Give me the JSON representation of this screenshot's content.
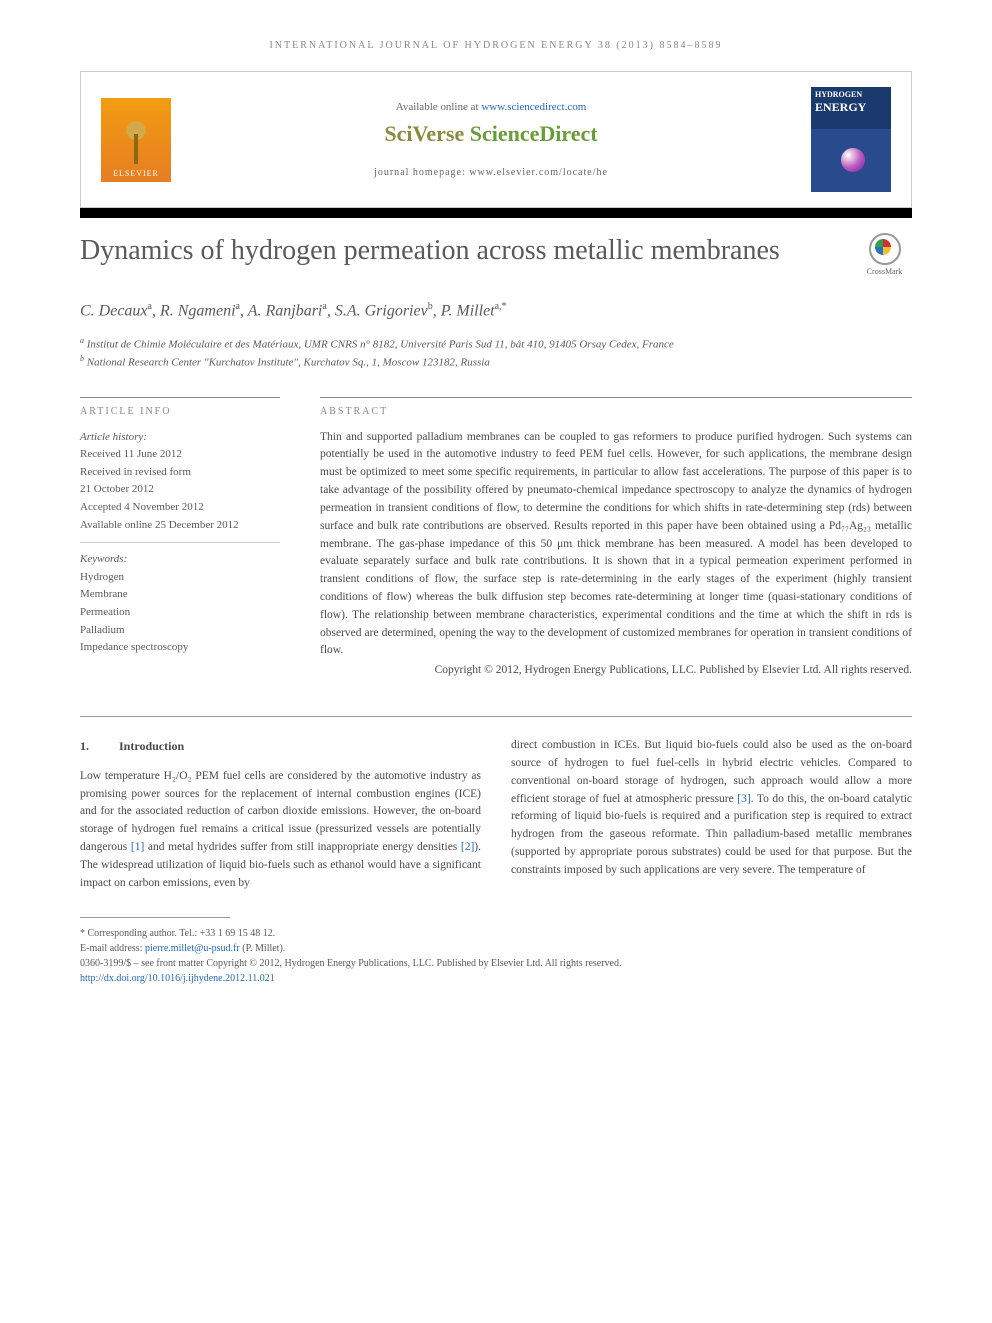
{
  "running_head": "INTERNATIONAL JOURNAL OF HYDROGEN ENERGY 38 (2013) 8584–8589",
  "header": {
    "elsevier_label": "ELSEVIER",
    "available_text": "Available online at ",
    "sd_url": "www.sciencedirect.com",
    "sciverse_prefix": "SciVerse",
    "sciverse_main": " ScienceDirect",
    "homepage_label": "journal homepage: ",
    "homepage_url": "www.elsevier.com/locate/he",
    "journal_cover_title1": "HYDROGEN",
    "journal_cover_title2": "ENERGY"
  },
  "article": {
    "title": "Dynamics of hydrogen permeation across metallic membranes",
    "crossmark_label": "CrossMark",
    "authors_html": "C. Decaux<sup>a</sup>, R. Ngameni<sup>a</sup>, A. Ranjbari<sup>a</sup>, S.A. Grigoriev<sup>b</sup>, P. Millet<sup>a,*</sup>",
    "affiliations": [
      "a Institut de Chimie Moléculaire et des Matériaux, UMR CNRS n° 8182, Université Paris Sud 11, bât 410, 91405 Orsay Cedex, France",
      "b National Research Center \"Kurchatov Institute\", Kurchatov Sq., 1, Moscow 123182, Russia"
    ]
  },
  "info": {
    "label": "ARTICLE INFO",
    "history_label": "Article history:",
    "history": [
      "Received 11 June 2012",
      "Received in revised form",
      "21 October 2012",
      "Accepted 4 November 2012",
      "Available online 25 December 2012"
    ],
    "keywords_label": "Keywords:",
    "keywords": [
      "Hydrogen",
      "Membrane",
      "Permeation",
      "Palladium",
      "Impedance spectroscopy"
    ]
  },
  "abstract": {
    "label": "ABSTRACT",
    "text": "Thin and supported palladium membranes can be coupled to gas reformers to produce purified hydrogen. Such systems can potentially be used in the automotive industry to feed PEM fuel cells. However, for such applications, the membrane design must be optimized to meet some specific requirements, in particular to allow fast accelerations. The purpose of this paper is to take advantage of the possibility offered by pneumato-chemical impedance spectroscopy to analyze the dynamics of hydrogen permeation in transient conditions of flow, to determine the conditions for which shifts in rate-determining step (rds) between surface and bulk rate contributions are observed. Results reported in this paper have been obtained using a Pd₇₇Ag₂₃ metallic membrane. The gas-phase impedance of this 50 μm thick membrane has been measured. A model has been developed to evaluate separately surface and bulk rate contributions. It is shown that in a typical permeation experiment performed in transient conditions of flow, the surface step is rate-determining in the early stages of the experiment (highly transient conditions of flow) whereas the bulk diffusion step becomes rate-determining at longer time (quasi-stationary conditions of flow). The relationship between membrane characteristics, experimental conditions and the time at which the shift in rds is observed are determined, opening the way to the development of customized membranes for operation in transient conditions of flow.",
    "copyright": "Copyright © 2012, Hydrogen Energy Publications, LLC. Published by Elsevier Ltd. All rights reserved."
  },
  "body": {
    "section_num": "1.",
    "section_title": "Introduction",
    "col1": "Low temperature H₂/O₂ PEM fuel cells are considered by the automotive industry as promising power sources for the replacement of internal combustion engines (ICE) and for the associated reduction of carbon dioxide emissions. However, the on-board storage of hydrogen fuel remains a critical issue (pressurized vessels are potentially dangerous [1] and metal hydrides suffer from still inappropriate energy densities [2]). The widespread utilization of liquid bio-fuels such as ethanol would have a significant impact on carbon emissions, even by",
    "col2": "direct combustion in ICEs. But liquid bio-fuels could also be used as the on-board source of hydrogen to fuel fuel-cells in hybrid electric vehicles. Compared to conventional on-board storage of hydrogen, such approach would allow a more efficient storage of fuel at atmospheric pressure [3]. To do this, the on-board catalytic reforming of liquid bio-fuels is required and a purification step is required to extract hydrogen from the gaseous reformate. Thin palladium-based metallic membranes (supported by appropriate porous substrates) could be used for that purpose. But the constraints imposed by such applications are very severe. The temperature of"
  },
  "footnotes": {
    "corresponding": "* Corresponding author. Tel.: +33 1 69 15 48 12.",
    "email_label": "E-mail address: ",
    "email": "pierre.millet@u-psud.fr",
    "email_suffix": " (P. Millet).",
    "issn": "0360-3199/$ – see front matter Copyright © 2012, Hydrogen Energy Publications, LLC. Published by Elsevier Ltd. All rights reserved.",
    "doi_prefix": "http://dx.doi.org/",
    "doi": "10.1016/j.ijhydene.2012.11.021"
  },
  "colors": {
    "link": "#2968b0",
    "text": "#4a4a4a",
    "muted": "#888888",
    "sciverse_green": "#6a9c3a",
    "elsevier_orange": "#e67e22"
  }
}
